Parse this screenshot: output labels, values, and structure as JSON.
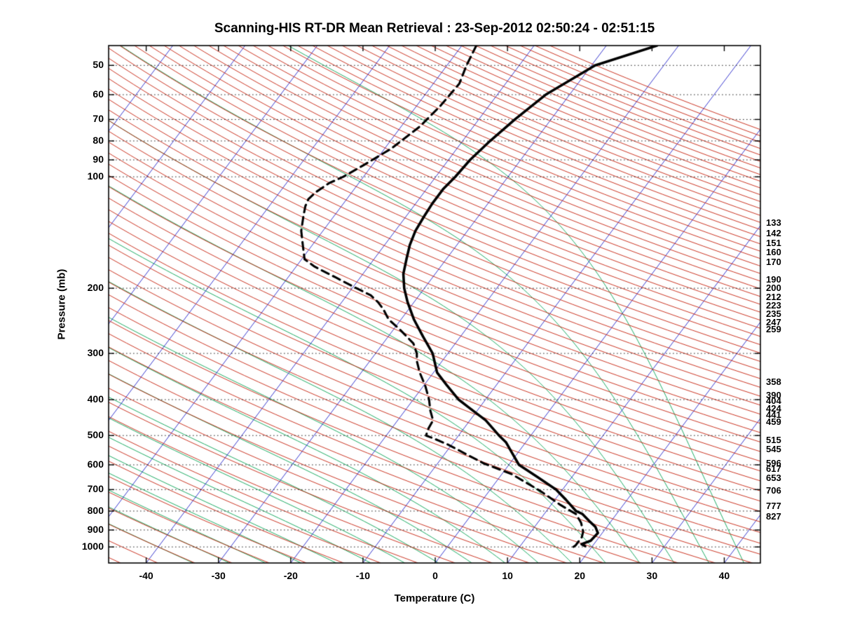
{
  "chart_data": {
    "type": "line",
    "title": "Scanning-HIS RT-DR Mean Retrieval : 23-Sep-2012 02:50:24 - 02:51:15",
    "xlabel": "Temperature (C)",
    "ylabel": "Pressure (mb)",
    "x_ticks": [
      -40,
      -30,
      -20,
      -10,
      0,
      10,
      20,
      30,
      40
    ],
    "y_ticks": [
      50,
      60,
      70,
      80,
      90,
      100,
      200,
      300,
      400,
      500,
      600,
      700,
      800,
      900,
      1000
    ],
    "xlim_bottom_axis": [
      -45.2,
      45.0
    ],
    "pressure_lim": [
      44.2,
      1105
    ],
    "skew_dx_per_dy": 0.75,
    "grid": "dotted horizontal lines at labeled pressure levels",
    "frame_color": "#000000",
    "right_pressure_labels": [
      133,
      142,
      151,
      160,
      170,
      190,
      200,
      212,
      223,
      235,
      247,
      259,
      358,
      390,
      404,
      424,
      441,
      459,
      515,
      545,
      596,
      617,
      653,
      706,
      777,
      827
    ],
    "background_lines": {
      "isotherms_c": {
        "color": "#2222c8",
        "from": -110,
        "to": 40,
        "step": 10
      },
      "dry_adiabats_theta_c": {
        "color": "#c41e0a",
        "from": -50,
        "to": 300,
        "step": 5
      },
      "moist_adiabats_thetaw_c": {
        "color": "#00a050",
        "from": -40,
        "to": 40,
        "step": 5
      }
    },
    "series": [
      {
        "name": "temperature",
        "line": "solid",
        "color": "#000000",
        "points_p_T": [
          [
            44.2,
            -23.0
          ],
          [
            50,
            -29.5
          ],
          [
            60,
            -33.3
          ],
          [
            70,
            -35.0
          ],
          [
            80,
            -36.2
          ],
          [
            90,
            -37.0
          ],
          [
            100,
            -37.3
          ],
          [
            108,
            -37.7
          ],
          [
            118,
            -37.7
          ],
          [
            128,
            -37.5
          ],
          [
            140,
            -37.2
          ],
          [
            153,
            -36.5
          ],
          [
            167,
            -35.5
          ],
          [
            183,
            -34.4
          ],
          [
            200,
            -32.8
          ],
          [
            218,
            -30.9
          ],
          [
            243,
            -28.2
          ],
          [
            270,
            -25.2
          ],
          [
            300,
            -22.1
          ],
          [
            338,
            -19.5
          ],
          [
            365,
            -16.9
          ],
          [
            400,
            -13.7
          ],
          [
            418,
            -11.7
          ],
          [
            455,
            -7.8
          ],
          [
            500,
            -4.4
          ],
          [
            522,
            -2.7
          ],
          [
            555,
            -0.9
          ],
          [
            600,
            1.4
          ],
          [
            648,
            5.3
          ],
          [
            700,
            9.1
          ],
          [
            745,
            11.5
          ],
          [
            800,
            14.1
          ],
          [
            815,
            15.3
          ],
          [
            850,
            16.9
          ],
          [
            882,
            18.4
          ],
          [
            917,
            19.4
          ],
          [
            962,
            19.2
          ],
          [
            983,
            18.3
          ],
          [
            995,
            19.0
          ]
        ]
      },
      {
        "name": "dew_point",
        "line": "dashed",
        "color": "#000000",
        "points_p_T": [
          [
            44.2,
            -48.0
          ],
          [
            50,
            -47.3
          ],
          [
            56,
            -46.4
          ],
          [
            64,
            -46.7
          ],
          [
            73,
            -47.4
          ],
          [
            84,
            -49.1
          ],
          [
            93,
            -51.2
          ],
          [
            100,
            -52.8
          ],
          [
            104,
            -54.1
          ],
          [
            110,
            -55.0
          ],
          [
            115,
            -55.3
          ],
          [
            120,
            -55.0
          ],
          [
            128,
            -54.2
          ],
          [
            140,
            -53.0
          ],
          [
            153,
            -51.3
          ],
          [
            167,
            -49.6
          ],
          [
            175,
            -47.4
          ],
          [
            187,
            -43.4
          ],
          [
            200,
            -39.4
          ],
          [
            209,
            -36.7
          ],
          [
            218,
            -35.0
          ],
          [
            228,
            -33.5
          ],
          [
            243,
            -31.7
          ],
          [
            258,
            -29.2
          ],
          [
            282,
            -25.8
          ],
          [
            300,
            -24.3
          ],
          [
            316,
            -23.4
          ],
          [
            338,
            -21.9
          ],
          [
            368,
            -19.7
          ],
          [
            400,
            -17.8
          ],
          [
            428,
            -16.5
          ],
          [
            455,
            -15.1
          ],
          [
            478,
            -14.9
          ],
          [
            500,
            -14.5
          ],
          [
            508,
            -13.3
          ],
          [
            530,
            -10.4
          ],
          [
            555,
            -7.7
          ],
          [
            594,
            -3.7
          ],
          [
            635,
            1.3
          ],
          [
            705,
            7.0
          ],
          [
            770,
            11.3
          ],
          [
            815,
            14.4
          ],
          [
            860,
            16.0
          ],
          [
            908,
            17.2
          ],
          [
            940,
            17.6
          ],
          [
            990,
            17.6
          ],
          [
            1008,
            17.3
          ]
        ]
      }
    ]
  }
}
